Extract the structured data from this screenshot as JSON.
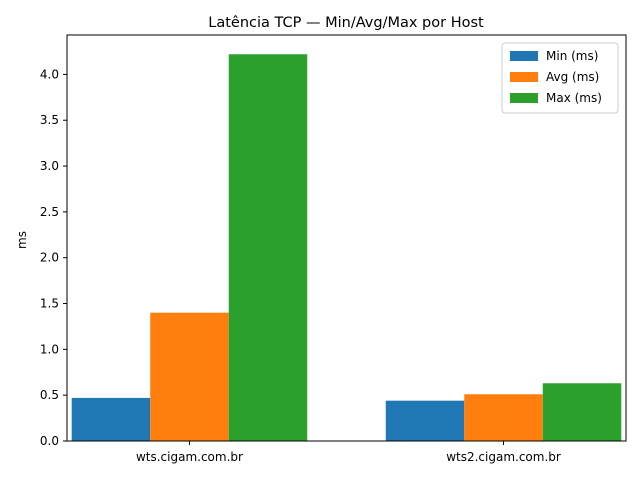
{
  "chart_data": {
    "type": "bar",
    "title": "Latência TCP — Min/Avg/Max por Host",
    "xlabel": "",
    "ylabel": "ms",
    "categories": [
      "wts.cigam.com.br",
      "wts2.cigam.com.br"
    ],
    "series": [
      {
        "name": "Min (ms)",
        "color": "#1f77b4",
        "values": [
          0.47,
          0.44
        ]
      },
      {
        "name": "Avg (ms)",
        "color": "#ff7f0e",
        "values": [
          1.4,
          0.51
        ]
      },
      {
        "name": "Max (ms)",
        "color": "#2ca02c",
        "values": [
          4.22,
          0.63
        ]
      }
    ],
    "ylim": [
      0,
      4.43
    ],
    "yticks": [
      "0.0",
      "0.5",
      "1.0",
      "1.5",
      "2.0",
      "2.5",
      "3.0",
      "3.5",
      "4.0"
    ],
    "grid": false,
    "legend_position": "top-right"
  }
}
